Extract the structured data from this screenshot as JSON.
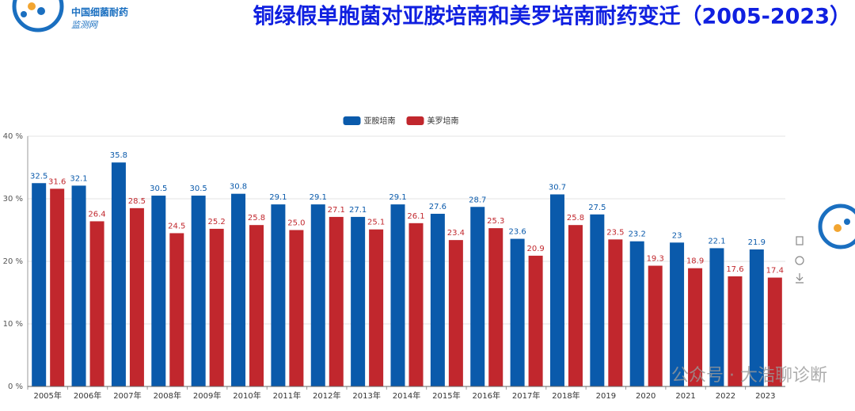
{
  "chart_data": {
    "type": "bar",
    "title": "铜绿假单胞菌对亚胺培南和美罗培南耐药变迁（2005-2023）",
    "categories": [
      "2005年",
      "2006年",
      "2007年",
      "2008年",
      "2009年",
      "2010年",
      "2011年",
      "2012年",
      "2013年",
      "2014年",
      "2015年",
      "2016年",
      "2017年",
      "2018年",
      "2019",
      "2020",
      "2021",
      "2022",
      "2023"
    ],
    "series": [
      {
        "name": "亚胺培南",
        "color": "#0a5aab",
        "values": [
          32.5,
          32.1,
          35.8,
          30.5,
          30.5,
          30.8,
          29.1,
          29.1,
          27.1,
          29.1,
          27.6,
          28.7,
          23.6,
          30.7,
          27.5,
          23.2,
          23,
          22.1,
          21.9
        ]
      },
      {
        "name": "美罗培南",
        "color": "#c1272d",
        "values": [
          31.6,
          26.4,
          28.5,
          24.5,
          25.2,
          25.8,
          25,
          27.1,
          25.1,
          26.1,
          23.4,
          25.3,
          20.9,
          25.8,
          23.5,
          19.3,
          18.9,
          17.6,
          17.4
        ],
        "value_labels": [
          "31.6",
          "26.4",
          "28.5",
          "24.5",
          "25.2",
          "25.8",
          "25.0",
          "27.1",
          "25.1",
          "26.1",
          "23.4",
          "25.3",
          "20.9",
          "25.8",
          "23.5",
          "19.3",
          "18.9",
          "17.6",
          "17.4"
        ]
      }
    ],
    "ylim": [
      0,
      40
    ],
    "yticks": [
      {
        "value": 0,
        "label": "0 %"
      },
      {
        "value": 10,
        "label": "10 %"
      },
      {
        "value": 20,
        "label": "20 %"
      },
      {
        "value": 30,
        "label": "30 %"
      },
      {
        "value": 40,
        "label": "40 %"
      }
    ],
    "grid": true,
    "legend": "top"
  },
  "logo": {
    "line1": "中国细菌耐药",
    "line2": "监测网"
  },
  "watermark": "公众号 · 大浩聊诊断"
}
